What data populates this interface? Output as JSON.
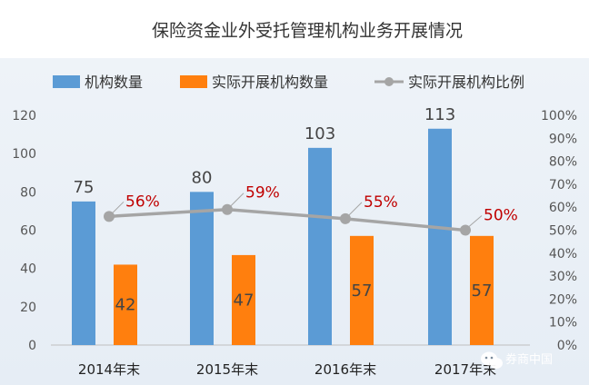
{
  "chart_data": {
    "type": "bar",
    "title": "保险资金业外受托管理机构业务开展情况",
    "categories": [
      "2014年末",
      "2015年末",
      "2016年末",
      "2017年末"
    ],
    "series": [
      {
        "name": "机构数量",
        "type": "bar",
        "axis": "left",
        "values": [
          75,
          80,
          103,
          113
        ],
        "labels": [
          "75",
          "80",
          "103",
          "113"
        ]
      },
      {
        "name": "实际开展机构数量",
        "type": "bar",
        "axis": "left",
        "values": [
          42,
          47,
          57,
          57
        ],
        "labels": [
          "42",
          "47",
          "57",
          "57"
        ]
      },
      {
        "name": "实际开展机构比例",
        "type": "line",
        "axis": "right",
        "values": [
          56,
          59,
          55,
          50
        ],
        "labels": [
          "56%",
          "59%",
          "55%",
          "50%"
        ]
      }
    ],
    "y_left": {
      "min": 0,
      "max": 120,
      "ticks": [
        "0",
        "20",
        "40",
        "60",
        "80",
        "100",
        "120"
      ]
    },
    "y_right": {
      "min": 0,
      "max": 100,
      "ticks": [
        "0%",
        "10%",
        "20%",
        "30%",
        "40%",
        "50%",
        "60%",
        "70%",
        "80%",
        "90%",
        "100%"
      ]
    },
    "legend_position": "top",
    "grid": false,
    "colors": {
      "count": "#5b9bd5",
      "active": "#ff7f0e",
      "ratio": "#a5a5a5",
      "ratio_label": "#c00000"
    }
  },
  "watermark": {
    "text": "券商中国",
    "icon": "wechat-icon"
  }
}
